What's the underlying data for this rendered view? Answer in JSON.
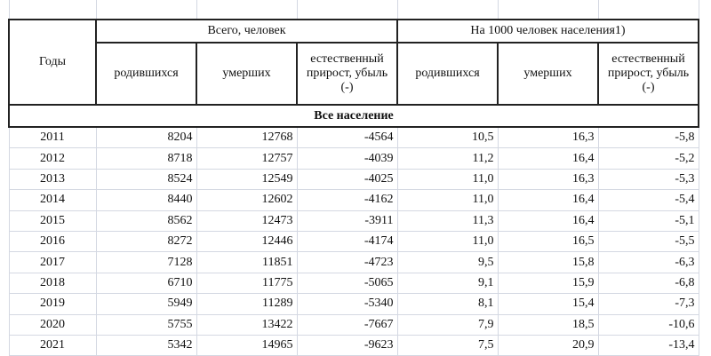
{
  "table": {
    "year_header": "Годы",
    "group_headers": [
      "Всего, человек",
      "На 1000 человек населения1)"
    ],
    "sub_headers": [
      "родившихся",
      "умерших",
      "естественный прирост, убыль (-)",
      "родившихся",
      "умерших",
      "естественный прирост, убыль (-)"
    ],
    "section": "Все население",
    "rows": [
      [
        "2011",
        "8204",
        "12768",
        "-4564",
        "10,5",
        "16,3",
        "-5,8"
      ],
      [
        "2012",
        "8718",
        "12757",
        "-4039",
        "11,2",
        "16,4",
        "-5,2"
      ],
      [
        "2013",
        "8524",
        "12549",
        "-4025",
        "11,0",
        "16,3",
        "-5,3"
      ],
      [
        "2014",
        "8440",
        "12602",
        "-4162",
        "11,0",
        "16,4",
        "-5,4"
      ],
      [
        "2015",
        "8562",
        "12473",
        "-3911",
        "11,3",
        "16,4",
        "-5,1"
      ],
      [
        "2016",
        "8272",
        "12446",
        "-4174",
        "11,0",
        "16,5",
        "-5,5"
      ],
      [
        "2017",
        "7128",
        "11851",
        "-4723",
        "9,5",
        "15,8",
        "-6,3"
      ],
      [
        "2018",
        "6710",
        "11775",
        "-5065",
        "9,1",
        "15,9",
        "-6,8"
      ],
      [
        "2019",
        "5949",
        "11289",
        "-5340",
        "8,1",
        "15,4",
        "-7,3"
      ],
      [
        "2020",
        "5755",
        "13422",
        "-7667",
        "7,9",
        "18,5",
        "-10,6"
      ],
      [
        "2021",
        "5342",
        "14965",
        "-9623",
        "7,5",
        "20,9",
        "-13,4"
      ]
    ]
  }
}
